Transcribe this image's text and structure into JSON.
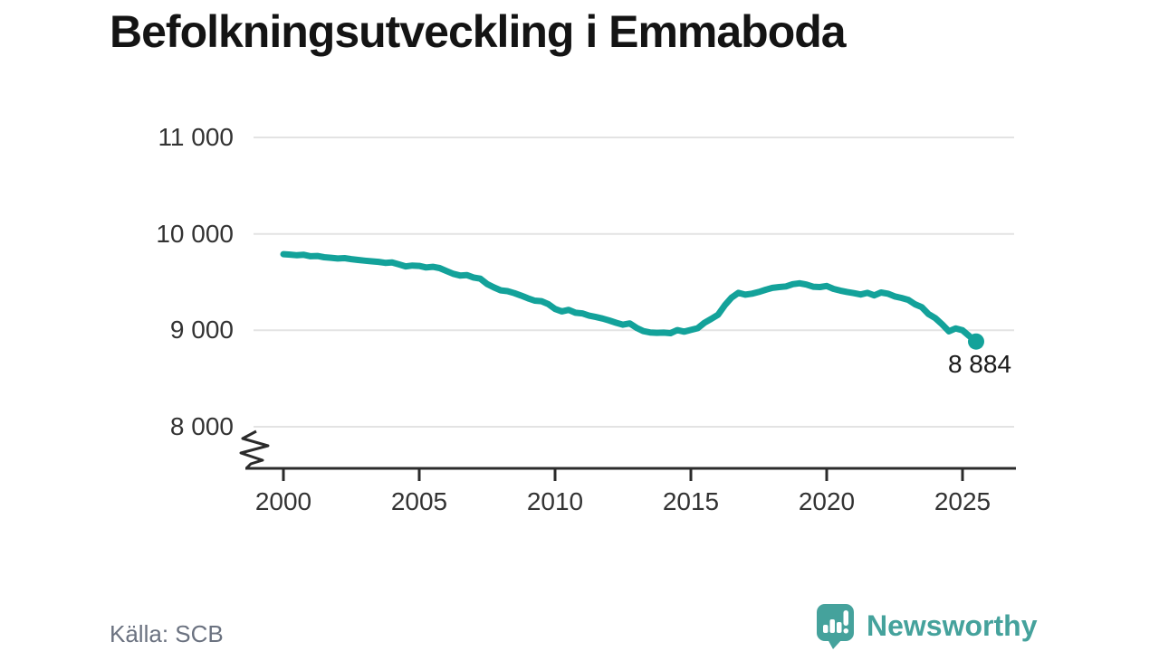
{
  "title": "Befolkningsutveckling i Emmaboda",
  "source": "Källa: SCB",
  "branding": {
    "wordmark": "Newsworthy",
    "icon": "newsworthy-speech-bubble-bar-chart-icon"
  },
  "colors": {
    "line": "#13a29a",
    "grid": "#e3e3e3",
    "axis": "#2b2b2b",
    "title_text": "#141414",
    "tick_text": "#333333",
    "end_label_text": "#1a1a1a",
    "source_text": "#6b7280",
    "brand": "#45a29c",
    "background": "#ffffff"
  },
  "chart_data": {
    "type": "line",
    "title": "Befolkningsutveckling i Emmaboda",
    "xlabel": "",
    "ylabel": "",
    "grid": "horizontal",
    "legend": "none",
    "x_tick_labels": [
      "2000",
      "2005",
      "2010",
      "2015",
      "2020",
      "2025"
    ],
    "x_tick_years": [
      2000,
      2005,
      2010,
      2015,
      2020,
      2025
    ],
    "y_tick_labels": [
      "11 000",
      "10 000",
      "9 000",
      "8 000"
    ],
    "y_tick_values": [
      11000,
      10000,
      9000,
      8000
    ],
    "y_axis_break": true,
    "xlim": [
      1998.6,
      2027
    ],
    "end_label": "8 884",
    "end_value": 8884,
    "series": [
      {
        "name": "Befolkning",
        "color": "#13a29a",
        "points": [
          [
            2000,
            9790
          ],
          [
            2000.25,
            9785
          ],
          [
            2000.5,
            9778
          ],
          [
            2000.75,
            9783
          ],
          [
            2001,
            9768
          ],
          [
            2001.25,
            9771
          ],
          [
            2001.5,
            9758
          ],
          [
            2001.75,
            9752
          ],
          [
            2002,
            9745
          ],
          [
            2002.25,
            9748
          ],
          [
            2002.5,
            9738
          ],
          [
            2002.75,
            9730
          ],
          [
            2003,
            9722
          ],
          [
            2003.25,
            9716
          ],
          [
            2003.5,
            9710
          ],
          [
            2003.75,
            9700
          ],
          [
            2004,
            9703
          ],
          [
            2004.25,
            9684
          ],
          [
            2004.5,
            9663
          ],
          [
            2004.75,
            9672
          ],
          [
            2005,
            9668
          ],
          [
            2005.25,
            9652
          ],
          [
            2005.5,
            9658
          ],
          [
            2005.75,
            9645
          ],
          [
            2006,
            9615
          ],
          [
            2006.25,
            9586
          ],
          [
            2006.5,
            9568
          ],
          [
            2006.75,
            9573
          ],
          [
            2007,
            9548
          ],
          [
            2007.25,
            9536
          ],
          [
            2007.5,
            9480
          ],
          [
            2007.75,
            9445
          ],
          [
            2008,
            9415
          ],
          [
            2008.25,
            9406
          ],
          [
            2008.5,
            9386
          ],
          [
            2008.75,
            9360
          ],
          [
            2009,
            9332
          ],
          [
            2009.25,
            9308
          ],
          [
            2009.5,
            9302
          ],
          [
            2009.75,
            9272
          ],
          [
            2010,
            9222
          ],
          [
            2010.25,
            9196
          ],
          [
            2010.5,
            9212
          ],
          [
            2010.75,
            9182
          ],
          [
            2011,
            9176
          ],
          [
            2011.25,
            9152
          ],
          [
            2011.5,
            9138
          ],
          [
            2011.75,
            9122
          ],
          [
            2012,
            9102
          ],
          [
            2012.25,
            9078
          ],
          [
            2012.5,
            9058
          ],
          [
            2012.75,
            9072
          ],
          [
            2013,
            9026
          ],
          [
            2013.25,
            8992
          ],
          [
            2013.5,
            8978
          ],
          [
            2013.75,
            8974
          ],
          [
            2014,
            8976
          ],
          [
            2014.25,
            8970
          ],
          [
            2014.5,
            9002
          ],
          [
            2014.75,
            8986
          ],
          [
            2015,
            9004
          ],
          [
            2015.25,
            9022
          ],
          [
            2015.5,
            9078
          ],
          [
            2015.75,
            9118
          ],
          [
            2016,
            9162
          ],
          [
            2016.25,
            9260
          ],
          [
            2016.5,
            9340
          ],
          [
            2016.75,
            9388
          ],
          [
            2017,
            9370
          ],
          [
            2017.25,
            9380
          ],
          [
            2017.5,
            9398
          ],
          [
            2017.75,
            9420
          ],
          [
            2018,
            9440
          ],
          [
            2018.25,
            9448
          ],
          [
            2018.5,
            9455
          ],
          [
            2018.75,
            9478
          ],
          [
            2019,
            9488
          ],
          [
            2019.25,
            9475
          ],
          [
            2019.5,
            9452
          ],
          [
            2019.75,
            9448
          ],
          [
            2020,
            9460
          ],
          [
            2020.25,
            9430
          ],
          [
            2020.5,
            9412
          ],
          [
            2020.75,
            9398
          ],
          [
            2021,
            9386
          ],
          [
            2021.25,
            9372
          ],
          [
            2021.5,
            9388
          ],
          [
            2021.75,
            9362
          ],
          [
            2022,
            9392
          ],
          [
            2022.25,
            9380
          ],
          [
            2022.5,
            9352
          ],
          [
            2022.75,
            9336
          ],
          [
            2023,
            9316
          ],
          [
            2023.25,
            9270
          ],
          [
            2023.5,
            9240
          ],
          [
            2023.75,
            9168
          ],
          [
            2024,
            9126
          ],
          [
            2024.25,
            9062
          ],
          [
            2024.5,
            8990
          ],
          [
            2024.75,
            9020
          ],
          [
            2025,
            9000
          ],
          [
            2025.25,
            8940
          ],
          [
            2025.5,
            8884
          ]
        ]
      }
    ]
  }
}
